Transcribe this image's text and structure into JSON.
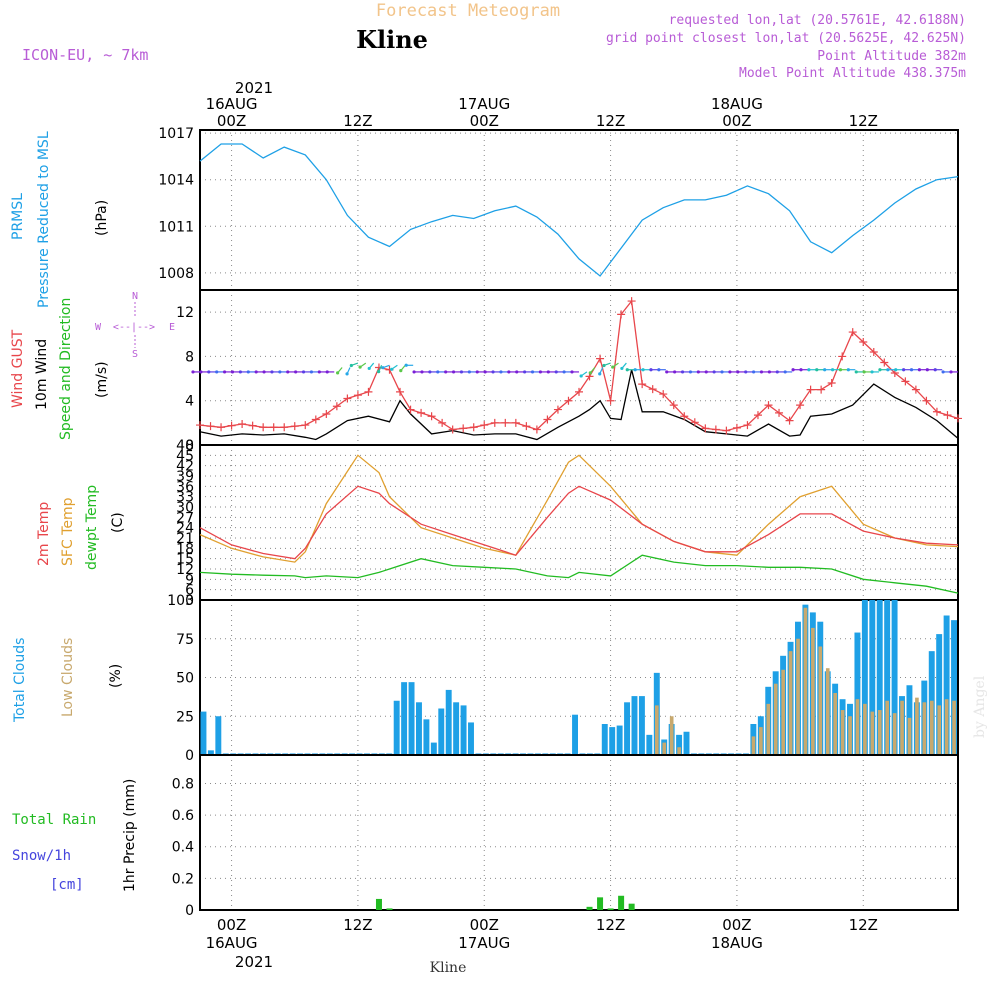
{
  "header": {
    "title": "Forecast Meteogram",
    "location": "Kline",
    "model": "ICON-EU, ~ 7km",
    "requested": "requested lon,lat (20.5761E, 42.6188N)",
    "gridpoint": "grid point closest lon,lat (20.5625E, 42.625N)",
    "altitude": "Point Altitude 382m",
    "model_altitude": "Model Point Altitude 438.375m"
  },
  "footer": {
    "location": "Kline"
  },
  "watermark": "by Angel",
  "compass": {
    "n": "N",
    "s": "S",
    "w": "W",
    "e": "E",
    "arrow": "<--|-->"
  },
  "time_axis": {
    "top": {
      "year": "2021",
      "ticks": [
        {
          "day": "16AUG",
          "hour": "00Z"
        },
        {
          "day": "",
          "hour": "12Z"
        },
        {
          "day": "17AUG",
          "hour": "00Z"
        },
        {
          "day": "",
          "hour": "12Z"
        },
        {
          "day": "18AUG",
          "hour": "00Z"
        },
        {
          "day": "",
          "hour": "12Z"
        }
      ]
    },
    "bottom": {
      "year": "2021",
      "ticks": [
        {
          "hour": "00Z",
          "day": "16AUG"
        },
        {
          "hour": "12Z",
          "day": ""
        },
        {
          "hour": "00Z",
          "day": "17AUG"
        },
        {
          "hour": "12Z",
          "day": ""
        },
        {
          "hour": "00Z",
          "day": "18AUG"
        },
        {
          "hour": "12Z",
          "day": ""
        }
      ]
    }
  },
  "panels": {
    "pressure": {
      "label_primary": "PRMSL",
      "label_secondary": "Pressure Reduced to MSL",
      "units": "(hPa)",
      "color": "#1ea0e6"
    },
    "wind": {
      "label_gust": "Wind GUST",
      "label_wind": "10m Wind",
      "label_dir": "Speed and Direction",
      "units": "(m/s)",
      "gust_color": "#e8464b",
      "wind_color": "#000000",
      "dir_color": "#22bb22"
    },
    "temp": {
      "label_2m": "2m Temp",
      "label_sfc": "SFC Temp",
      "label_dew": "dewpt Temp",
      "units": "(C)",
      "t2m_color": "#e8464b",
      "sfc_color": "#e0a030",
      "dew_color": "#22bb22"
    },
    "clouds": {
      "label_total": "Total Clouds",
      "label_low": "Low Clouds",
      "units": "(%)",
      "total_color": "#1ea0e6",
      "low_color": "#c8a96e"
    },
    "precip": {
      "label_rain": "Total Rain",
      "label_snow": "Snow/1h",
      "label_snow_units": "[cm]",
      "units": "1hr Precip (mm)",
      "rain_color": "#22bb22",
      "snow_color": "#4444dd"
    }
  },
  "chart_data": [
    {
      "type": "line",
      "title": "PRMSL Pressure Reduced to MSL",
      "ylabel": "(hPa)",
      "x_unit": "hours from 2021-08-15 21Z",
      "ylim": [
        1006.9,
        1017.2
      ],
      "yticks": [
        1008,
        1011,
        1014,
        1017
      ],
      "series": [
        {
          "name": "PRMSL",
          "x": [
            0,
            2,
            4,
            6,
            8,
            10,
            12,
            14,
            16,
            18,
            20,
            22,
            24,
            26,
            28,
            30,
            32,
            34,
            36,
            38,
            40,
            42,
            44,
            46,
            48,
            50,
            52,
            54,
            56,
            58,
            60,
            62,
            64,
            66,
            68,
            70,
            72
          ],
          "values": [
            1015.2,
            1016.3,
            1016.3,
            1015.4,
            1016.1,
            1015.6,
            1014.0,
            1011.7,
            1010.3,
            1009.7,
            1010.8,
            1011.3,
            1011.7,
            1011.5,
            1012.0,
            1012.3,
            1011.6,
            1010.5,
            1008.9,
            1007.8,
            1009.6,
            1011.4,
            1012.2,
            1012.7,
            1012.7,
            1013.0,
            1013.6,
            1013.1,
            1012.0,
            1010.0,
            1009.3,
            1010.4,
            1011.4,
            1012.5,
            1013.4,
            1014.0,
            1014.2
          ]
        }
      ]
    },
    {
      "type": "line",
      "title": "Wind GUST, 10m Wind Speed and Direction",
      "ylabel": "(m/s)",
      "x_unit": "hours from 2021-08-15 21Z",
      "ylim": [
        0,
        14
      ],
      "yticks": [
        0,
        4,
        8,
        12
      ],
      "series": [
        {
          "name": "Wind GUST",
          "x": [
            0,
            2,
            4,
            6,
            8,
            10,
            12,
            14,
            16,
            17,
            18,
            19,
            20,
            22,
            24,
            26,
            28,
            30,
            32,
            34,
            36,
            37,
            38,
            39,
            40,
            41,
            42,
            44,
            46,
            48,
            50,
            52,
            54,
            56,
            58,
            59,
            60,
            61,
            62,
            64,
            66,
            68,
            70,
            72
          ],
          "values": [
            1.8,
            1.6,
            1.9,
            1.6,
            1.6,
            1.8,
            2.8,
            4.2,
            4.8,
            7.0,
            6.8,
            4.8,
            3.2,
            2.6,
            1.4,
            1.6,
            2.0,
            2.0,
            1.4,
            3.2,
            4.8,
            6.2,
            7.8,
            4.0,
            11.8,
            13.0,
            5.5,
            4.6,
            2.6,
            1.5,
            1.3,
            1.8,
            3.6,
            2.2,
            5.0,
            5.0,
            5.6,
            8.0,
            10.2,
            8.4,
            6.5,
            5.0,
            3.0,
            2.4
          ]
        },
        {
          "name": "10m Wind",
          "x": [
            0,
            2,
            4,
            6,
            8,
            10,
            11,
            12,
            14,
            16,
            18,
            19,
            20,
            22,
            24,
            26,
            28,
            30,
            32,
            34,
            36,
            37,
            38,
            39,
            40,
            41,
            42,
            44,
            46,
            48,
            50,
            52,
            54,
            56,
            57,
            58,
            60,
            62,
            64,
            66,
            68,
            70,
            72
          ],
          "values": [
            1.2,
            0.8,
            1.0,
            0.9,
            1.0,
            0.7,
            0.5,
            1.0,
            2.2,
            2.6,
            2.1,
            4.0,
            2.8,
            1.0,
            1.3,
            0.9,
            1.0,
            1.0,
            0.5,
            1.6,
            2.6,
            3.2,
            4.0,
            2.4,
            2.3,
            6.8,
            3.0,
            3.0,
            2.3,
            1.2,
            1.0,
            0.8,
            1.9,
            0.8,
            0.9,
            2.6,
            2.8,
            3.6,
            5.5,
            4.3,
            3.4,
            2.2,
            0.6
          ]
        },
        {
          "name": "Direction (arrows)",
          "x": [
            0,
            2,
            4,
            6,
            8,
            10,
            12,
            14,
            16,
            18,
            20,
            22,
            24,
            26,
            28,
            30,
            32,
            34,
            36,
            38,
            40,
            42,
            44,
            46,
            48,
            50,
            52,
            54,
            56,
            58,
            60,
            62,
            64,
            66,
            68,
            70,
            72
          ],
          "values": [
            6.6,
            6.6,
            6.6,
            6.6,
            6.6,
            6.6,
            6.6,
            7.0,
            7.4,
            7.2,
            7.2,
            6.6,
            6.6,
            6.6,
            6.6,
            6.6,
            6.6,
            6.6,
            6.6,
            7.0,
            7.4,
            6.8,
            6.8,
            6.6,
            6.6,
            6.6,
            6.6,
            6.6,
            6.6,
            6.8,
            6.8,
            6.8,
            6.6,
            6.8,
            6.8,
            6.8,
            6.6
          ]
        }
      ]
    },
    {
      "type": "line",
      "title": "2m Temp, SFC Temp, dewpt Temp",
      "ylabel": "(C)",
      "x_unit": "hours from 2021-08-15 21Z",
      "ylim": [
        3,
        48
      ],
      "yticks": [
        3,
        6,
        9,
        12,
        15,
        18,
        21,
        24,
        27,
        30,
        33,
        36,
        39,
        42,
        45,
        48
      ],
      "series": [
        {
          "name": "2m Temp",
          "x": [
            0,
            3,
            6,
            9,
            10,
            12,
            15,
            17,
            18,
            21,
            24,
            27,
            30,
            33,
            35,
            36,
            39,
            42,
            45,
            48,
            51,
            54,
            57,
            60,
            63,
            66,
            69,
            72
          ],
          "values": [
            24,
            19,
            16.5,
            15,
            18,
            28,
            36,
            34,
            31,
            25,
            22,
            19,
            16,
            27,
            34,
            36,
            32,
            25,
            20,
            17,
            17,
            22,
            28,
            28,
            23,
            21,
            19.5,
            19
          ]
        },
        {
          "name": "SFC Temp",
          "x": [
            0,
            3,
            6,
            9,
            10,
            12,
            15,
            17,
            18,
            21,
            24,
            27,
            30,
            33,
            35,
            36,
            39,
            42,
            45,
            48,
            51,
            54,
            57,
            60,
            63,
            66,
            69,
            72
          ],
          "values": [
            22,
            18,
            15.5,
            14,
            17,
            31,
            45,
            40,
            33,
            24,
            21,
            18,
            16,
            32,
            43,
            45,
            36,
            25,
            20,
            17,
            16,
            25,
            33,
            36,
            25,
            21,
            19,
            18.5
          ]
        },
        {
          "name": "dewpt Temp",
          "x": [
            0,
            3,
            6,
            9,
            10,
            12,
            15,
            17,
            18,
            21,
            24,
            27,
            30,
            33,
            35,
            36,
            39,
            42,
            45,
            48,
            51,
            54,
            57,
            60,
            63,
            66,
            69,
            72
          ],
          "values": [
            11,
            10.5,
            10.2,
            10,
            9.5,
            10,
            9.5,
            11,
            12,
            15,
            13,
            12.5,
            12,
            10,
            9.5,
            11,
            10,
            16,
            14,
            13,
            13,
            12.5,
            12.5,
            12,
            9,
            8,
            7,
            5
          ]
        }
      ]
    },
    {
      "type": "bar",
      "title": "Total Clouds, Low Clouds",
      "ylabel": "(%)",
      "x_unit": "hours from 2021-08-15 21Z",
      "ylim": [
        0,
        100
      ],
      "yticks": [
        0,
        25,
        50,
        75,
        100
      ],
      "series": [
        {
          "name": "Total Clouds",
          "values": [
            28,
            3,
            25,
            1,
            1,
            1,
            1,
            1,
            1,
            1,
            1,
            1,
            1,
            1,
            1,
            1,
            1,
            1,
            1,
            1,
            1,
            1,
            1,
            1,
            1,
            1,
            35,
            47,
            47,
            34,
            23,
            8,
            30,
            42,
            34,
            32,
            21,
            1,
            1,
            1,
            1,
            1,
            1,
            1,
            1,
            1,
            1,
            1,
            1,
            1,
            26,
            1,
            1,
            1,
            20,
            18,
            19,
            34,
            38,
            38,
            13,
            53,
            10,
            20,
            13,
            15,
            1,
            1,
            1,
            1,
            1,
            1,
            1,
            1,
            20,
            25,
            44,
            54,
            64,
            73,
            86,
            97,
            92,
            86,
            54,
            46,
            36,
            33,
            79,
            100,
            100,
            100,
            100,
            100,
            38,
            45,
            34,
            48,
            67,
            78,
            90,
            87
          ]
        },
        {
          "name": "Low Clouds",
          "values": [
            0,
            0,
            0,
            0,
            0,
            0,
            0,
            0,
            0,
            0,
            0,
            0,
            0,
            0,
            0,
            0,
            0,
            0,
            0,
            0,
            0,
            0,
            0,
            0,
            0,
            0,
            0,
            0,
            0,
            0,
            0,
            0,
            0,
            0,
            0,
            0,
            0,
            0,
            0,
            0,
            0,
            0,
            0,
            0,
            0,
            0,
            0,
            0,
            0,
            0,
            0,
            0,
            0,
            0,
            0,
            0,
            0,
            0,
            0,
            0,
            0,
            32,
            8,
            25,
            5,
            0,
            0,
            0,
            0,
            0,
            0,
            0,
            0,
            0,
            12,
            18,
            33,
            46,
            55,
            67,
            75,
            95,
            82,
            70,
            56,
            40,
            29,
            25,
            36,
            33,
            28,
            29,
            35,
            27,
            35,
            24,
            37,
            34,
            35,
            32,
            36,
            35
          ]
        }
      ]
    },
    {
      "type": "bar",
      "title": "Total Rain, Snow/1h [cm]",
      "ylabel": "1hr Precip (mm)",
      "x_unit": "hours from 2021-08-15 21Z",
      "ylim": [
        0,
        0.98
      ],
      "yticks": [
        0,
        0.2,
        0.4,
        0.6,
        0.8
      ],
      "series": [
        {
          "name": "Total Rain",
          "x": [
            17,
            18,
            37,
            38,
            39,
            40,
            41,
            42
          ],
          "values": [
            0.07,
            0.01,
            0.02,
            0.08,
            0.01,
            0.09,
            0.04,
            0.0
          ]
        }
      ]
    }
  ]
}
